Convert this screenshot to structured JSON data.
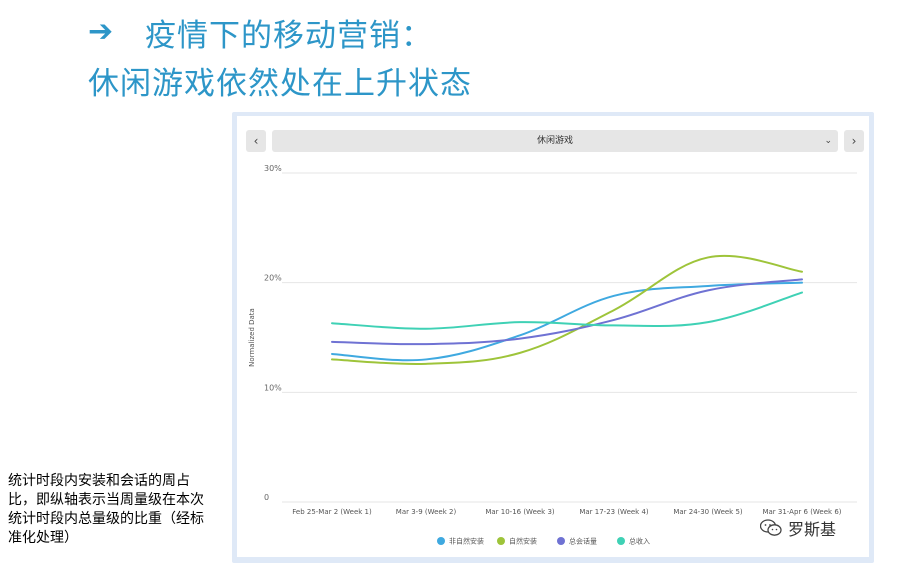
{
  "header": {
    "arrow": "➔",
    "title_line1": "疫情下的移动营销：",
    "title_line2": "休闲游戏依然处在上升状态"
  },
  "controls": {
    "prev_label": "‹",
    "next_label": "›",
    "dropdown_value": "休闲游戏",
    "dropdown_chevron": "⌄"
  },
  "note": "统计时段内安装和会话的周占比，即纵轴表示当周量级在本次统计时段内总量级的比重（经标准化处理）",
  "watermark": "罗斯基",
  "chart_data": {
    "type": "line",
    "title": "",
    "xlabel": "",
    "ylabel": "Normalized Data",
    "ylim": [
      0,
      30
    ],
    "yticks": [
      0,
      10,
      20,
      30
    ],
    "ytick_labels": [
      "0",
      "10%",
      "20%",
      "30%"
    ],
    "categories": [
      "Feb 25-Mar 2 (Week 1)",
      "Mar 3-9 (Week 2)",
      "Mar 10-16 (Week 3)",
      "Mar 17-23 (Week 4)",
      "Mar 24-30 (Week 5)",
      "Mar 31-Apr 6 (Week 6)"
    ],
    "series": [
      {
        "name": "非自然安装",
        "color": "#3fa9e0",
        "values": [
          13.5,
          13.0,
          15.2,
          18.8,
          19.7,
          20.0
        ]
      },
      {
        "name": "自然安装",
        "color": "#9ec43a",
        "values": [
          13.0,
          12.6,
          13.6,
          17.5,
          22.3,
          21.0
        ]
      },
      {
        "name": "总会话量",
        "color": "#6f72d3",
        "values": [
          14.6,
          14.4,
          14.9,
          16.6,
          19.3,
          20.3
        ]
      },
      {
        "name": "总收入",
        "color": "#3fd1b5",
        "values": [
          16.3,
          15.8,
          16.4,
          16.1,
          16.4,
          19.1
        ]
      }
    ],
    "grid": true,
    "legend": "bottom"
  }
}
